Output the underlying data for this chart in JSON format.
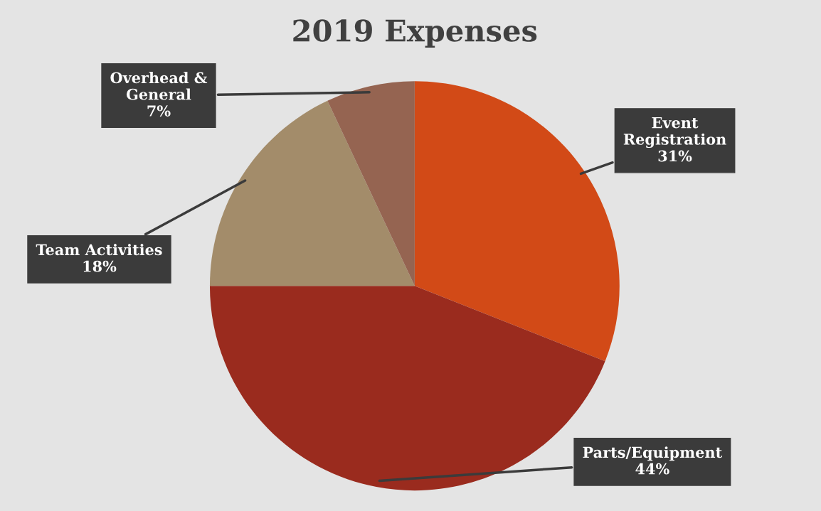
{
  "chart_data": {
    "type": "pie",
    "title": "2019 Expenses",
    "categories": [
      "Event\nRegistration",
      "Parts/Equipment",
      "Team Activities",
      "Overhead &\nGeneral"
    ],
    "values": [
      31,
      44,
      18,
      7
    ],
    "value_labels": [
      "31%",
      "44%",
      "18%",
      "7%"
    ],
    "colors": [
      "#d24a17",
      "#9a2b1e",
      "#a38c6a",
      "#956451"
    ]
  }
}
